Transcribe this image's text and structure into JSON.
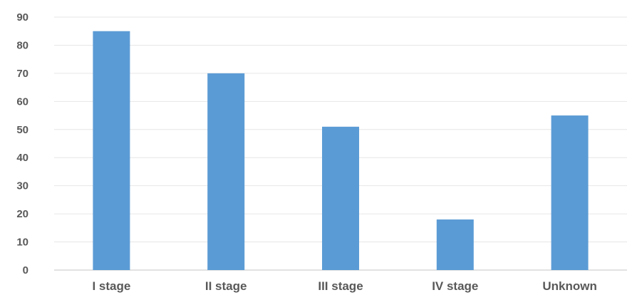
{
  "chart_data": {
    "type": "bar",
    "categories": [
      "I stage",
      "II stage",
      "III stage",
      "IV stage",
      "Unknown"
    ],
    "values": [
      85,
      70,
      51,
      18,
      55
    ],
    "ylim": [
      0,
      90
    ],
    "yticks": [
      0,
      10,
      20,
      30,
      40,
      50,
      60,
      70,
      80,
      90
    ],
    "grid": true,
    "legend": "none",
    "colors": {
      "bar": "#5b9bd5",
      "grid": "#e6e6e6",
      "axis": "#d9d9d9",
      "text": "#595959"
    }
  }
}
